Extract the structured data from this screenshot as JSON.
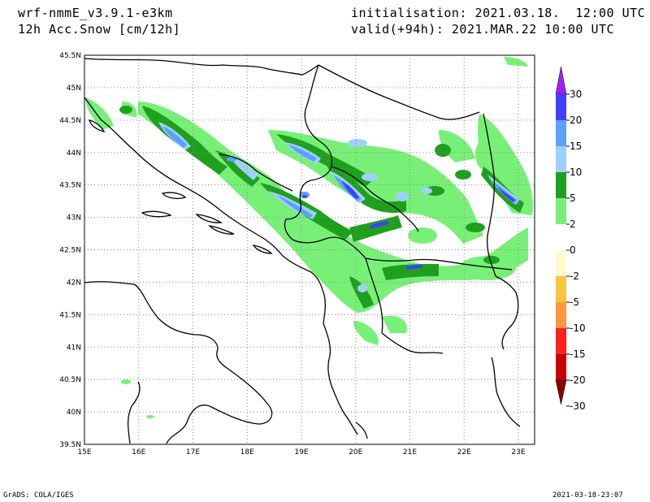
{
  "header": {
    "model": "wrf-nmmE_v3.9.1-e3km",
    "field": "12h Acc.Snow [cm/12h]",
    "init": "initialisation: 2021.03.18.  12:00 UTC",
    "valid": "valid(+94h): 2021.MAR.22 10:00 UTC"
  },
  "footer": {
    "credit": "GrADS: COLA/IGES",
    "timestamp": "2021-03-18-23:07"
  },
  "axes": {
    "lon_labels": [
      "15E",
      "16E",
      "17E",
      "18E",
      "19E",
      "20E",
      "21E",
      "22E",
      "23E"
    ],
    "lat_labels": [
      "45.5N",
      "45N",
      "44.5N",
      "44N",
      "43.5N",
      "43N",
      "42.5N",
      "42N",
      "41.5N",
      "41N",
      "40.5N",
      "40N",
      "39.5N"
    ],
    "lon_range": [
      15,
      23.3
    ],
    "lat_range": [
      39.5,
      45.5
    ],
    "grid": "dotted"
  },
  "colorbar": {
    "labels": [
      "30",
      "20",
      "15",
      "10",
      "5",
      "2",
      "0",
      "-2",
      "-5",
      "-10",
      "-15",
      "-20",
      "-30"
    ],
    "colors": [
      "#a020f0",
      "#4040ff",
      "#5aa0ff",
      "#a0d0ff",
      "#1ea01e",
      "#78f078",
      "#ffffff",
      "#fffacd",
      "#f5c83c",
      "#ff9640",
      "#ff2020",
      "#c80000",
      "#8c0000"
    ]
  }
}
